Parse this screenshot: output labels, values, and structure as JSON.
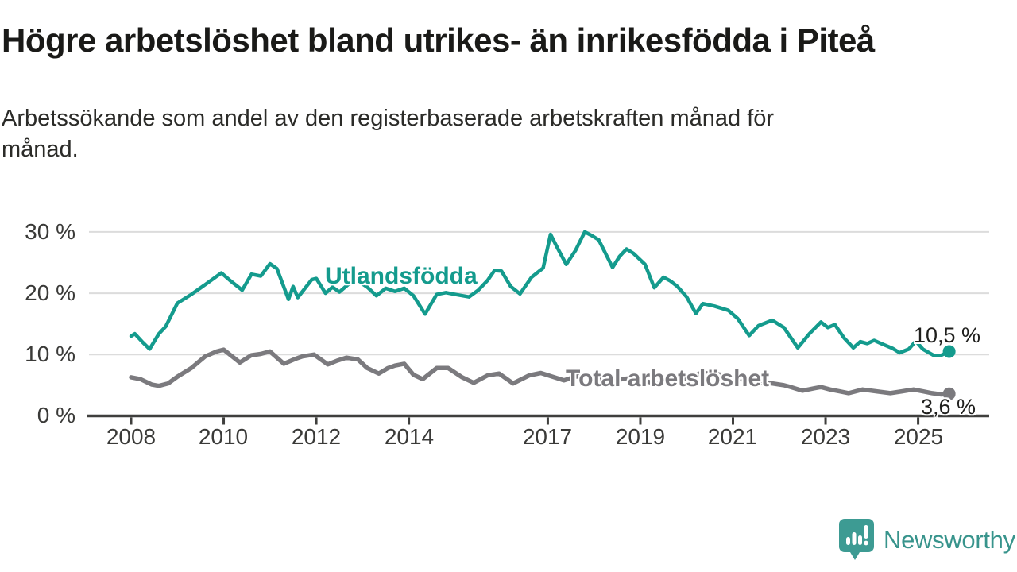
{
  "header": {
    "title": "Högre arbetslöshet bland utrikes- än inrikesfödda i Piteå",
    "subtitle_line1": "Arbetssökande som andel av den registerbaserade arbetskraften månad för",
    "subtitle_line2": "månad."
  },
  "branding": {
    "logo_text": "Newsworthy",
    "logo_color": "#3d9b93"
  },
  "colors": {
    "series_utlandsfodda": "#149b8d",
    "series_total": "#7b7a7e",
    "grid": "#dcdcdc",
    "axis": "#3f3f3d",
    "tick_label": "#3a3a38"
  },
  "chart_data": {
    "type": "line",
    "title": "Högre arbetslöshet bland utrikes- än inrikesfödda i Piteå",
    "subtitle": "Arbetssökande som andel av den registerbaserade arbetskraften månad för månad.",
    "xlabel": "",
    "ylabel": "",
    "x_unit": "year (decimal = month position)",
    "y_unit": "%",
    "xlim": [
      2007.95,
      2025.9
    ],
    "ylim": [
      0,
      32
    ],
    "grid": "horizontal",
    "legend_position": "inline-labels",
    "yticks": [
      {
        "value": 0,
        "label": "0 %"
      },
      {
        "value": 10,
        "label": "10 %"
      },
      {
        "value": 20,
        "label": "20 %"
      },
      {
        "value": 30,
        "label": "30 %"
      }
    ],
    "xticks": [
      {
        "value": 2008,
        "label": "2008"
      },
      {
        "value": 2010,
        "label": "2010"
      },
      {
        "value": 2012,
        "label": "2012"
      },
      {
        "value": 2014,
        "label": "2014"
      },
      {
        "value": 2017,
        "label": "2017"
      },
      {
        "value": 2019,
        "label": "2019"
      },
      {
        "value": 2021,
        "label": "2021"
      },
      {
        "value": 2023,
        "label": "2023"
      },
      {
        "value": 2025,
        "label": "2025"
      }
    ],
    "series": [
      {
        "name": "Utlandsfödda",
        "color": "#149b8d",
        "line_width": 4.5,
        "end_dot": true,
        "end_value_label": "10,5 %",
        "points": [
          [
            2008.0,
            13.0
          ],
          [
            2008.08,
            13.4
          ],
          [
            2008.25,
            12.0
          ],
          [
            2008.4,
            10.9
          ],
          [
            2008.6,
            13.4
          ],
          [
            2008.75,
            14.6
          ],
          [
            2009.0,
            18.4
          ],
          [
            2009.3,
            19.8
          ],
          [
            2009.6,
            21.4
          ],
          [
            2009.95,
            23.3
          ],
          [
            2010.15,
            22.0
          ],
          [
            2010.4,
            20.5
          ],
          [
            2010.6,
            23.1
          ],
          [
            2010.8,
            22.8
          ],
          [
            2011.0,
            24.8
          ],
          [
            2011.15,
            24.0
          ],
          [
            2011.4,
            19.0
          ],
          [
            2011.5,
            21.1
          ],
          [
            2011.6,
            19.3
          ],
          [
            2011.9,
            22.2
          ],
          [
            2012.0,
            22.4
          ],
          [
            2012.2,
            20.0
          ],
          [
            2012.35,
            21.0
          ],
          [
            2012.5,
            20.2
          ],
          [
            2012.7,
            21.5
          ],
          [
            2012.9,
            22.0
          ],
          [
            2013.1,
            21.0
          ],
          [
            2013.3,
            19.6
          ],
          [
            2013.5,
            20.8
          ],
          [
            2013.7,
            20.3
          ],
          [
            2013.9,
            20.8
          ],
          [
            2014.1,
            19.6
          ],
          [
            2014.35,
            16.6
          ],
          [
            2014.6,
            19.8
          ],
          [
            2014.8,
            20.1
          ],
          [
            2015.0,
            19.8
          ],
          [
            2015.3,
            19.4
          ],
          [
            2015.5,
            20.5
          ],
          [
            2015.7,
            22.1
          ],
          [
            2015.85,
            23.7
          ],
          [
            2016.0,
            23.6
          ],
          [
            2016.2,
            21.1
          ],
          [
            2016.4,
            19.9
          ],
          [
            2016.65,
            22.6
          ],
          [
            2016.9,
            24.1
          ],
          [
            2017.06,
            29.6
          ],
          [
            2017.2,
            27.5
          ],
          [
            2017.4,
            24.7
          ],
          [
            2017.6,
            27.0
          ],
          [
            2017.8,
            30.0
          ],
          [
            2017.95,
            29.4
          ],
          [
            2018.1,
            28.7
          ],
          [
            2018.4,
            24.2
          ],
          [
            2018.55,
            26.0
          ],
          [
            2018.7,
            27.2
          ],
          [
            2018.85,
            26.5
          ],
          [
            2019.1,
            24.7
          ],
          [
            2019.3,
            20.9
          ],
          [
            2019.5,
            22.6
          ],
          [
            2019.65,
            22.0
          ],
          [
            2019.8,
            21.1
          ],
          [
            2020.0,
            19.4
          ],
          [
            2020.2,
            16.7
          ],
          [
            2020.35,
            18.3
          ],
          [
            2020.6,
            17.9
          ],
          [
            2020.9,
            17.2
          ],
          [
            2021.1,
            15.9
          ],
          [
            2021.35,
            13.1
          ],
          [
            2021.55,
            14.7
          ],
          [
            2021.85,
            15.6
          ],
          [
            2022.1,
            14.4
          ],
          [
            2022.4,
            11.1
          ],
          [
            2022.65,
            13.4
          ],
          [
            2022.9,
            15.3
          ],
          [
            2023.05,
            14.4
          ],
          [
            2023.2,
            14.9
          ],
          [
            2023.4,
            12.7
          ],
          [
            2023.6,
            11.1
          ],
          [
            2023.75,
            12.1
          ],
          [
            2023.9,
            11.8
          ],
          [
            2024.05,
            12.3
          ],
          [
            2024.2,
            11.8
          ],
          [
            2024.45,
            11.0
          ],
          [
            2024.6,
            10.3
          ],
          [
            2024.8,
            10.9
          ],
          [
            2024.95,
            12.2
          ],
          [
            2025.1,
            10.9
          ],
          [
            2025.35,
            9.8
          ],
          [
            2025.5,
            9.9
          ],
          [
            2025.67,
            10.5
          ]
        ]
      },
      {
        "name": "Total arbetslöshet",
        "color": "#7b7a7e",
        "line_width": 5.5,
        "end_dot": true,
        "end_value_label": "3,6 %",
        "points": [
          [
            2008.0,
            6.3
          ],
          [
            2008.2,
            6.0
          ],
          [
            2008.45,
            5.1
          ],
          [
            2008.6,
            4.9
          ],
          [
            2008.8,
            5.3
          ],
          [
            2009.0,
            6.4
          ],
          [
            2009.3,
            7.8
          ],
          [
            2009.6,
            9.7
          ],
          [
            2009.85,
            10.5
          ],
          [
            2010.0,
            10.8
          ],
          [
            2010.35,
            8.7
          ],
          [
            2010.6,
            9.9
          ],
          [
            2010.8,
            10.1
          ],
          [
            2011.0,
            10.5
          ],
          [
            2011.3,
            8.5
          ],
          [
            2011.55,
            9.3
          ],
          [
            2011.7,
            9.7
          ],
          [
            2011.95,
            10.0
          ],
          [
            2012.25,
            8.4
          ],
          [
            2012.45,
            9.0
          ],
          [
            2012.65,
            9.5
          ],
          [
            2012.9,
            9.2
          ],
          [
            2013.1,
            7.8
          ],
          [
            2013.35,
            6.9
          ],
          [
            2013.55,
            7.8
          ],
          [
            2013.7,
            8.2
          ],
          [
            2013.9,
            8.5
          ],
          [
            2014.1,
            6.7
          ],
          [
            2014.3,
            6.0
          ],
          [
            2014.6,
            7.8
          ],
          [
            2014.85,
            7.8
          ],
          [
            2015.15,
            6.3
          ],
          [
            2015.4,
            5.4
          ],
          [
            2015.7,
            6.6
          ],
          [
            2015.95,
            6.9
          ],
          [
            2016.25,
            5.3
          ],
          [
            2016.6,
            6.6
          ],
          [
            2016.85,
            7.0
          ],
          [
            2017.1,
            6.4
          ],
          [
            2017.35,
            5.8
          ],
          [
            2017.6,
            6.4
          ],
          [
            2017.85,
            6.6
          ],
          [
            2018.1,
            6.1
          ],
          [
            2018.35,
            5.5
          ],
          [
            2018.6,
            6.0
          ],
          [
            2018.85,
            6.2
          ],
          [
            2019.1,
            5.7
          ],
          [
            2019.35,
            5.2
          ],
          [
            2019.6,
            5.7
          ],
          [
            2019.85,
            5.9
          ],
          [
            2020.1,
            6.2
          ],
          [
            2020.3,
            7.0
          ],
          [
            2020.55,
            6.9
          ],
          [
            2020.85,
            6.6
          ],
          [
            2021.1,
            6.2
          ],
          [
            2021.35,
            5.6
          ],
          [
            2021.6,
            5.4
          ],
          [
            2021.85,
            5.3
          ],
          [
            2022.1,
            5.0
          ],
          [
            2022.25,
            4.7
          ],
          [
            2022.5,
            4.1
          ],
          [
            2022.75,
            4.5
          ],
          [
            2022.9,
            4.7
          ],
          [
            2023.1,
            4.3
          ],
          [
            2023.3,
            4.0
          ],
          [
            2023.5,
            3.7
          ],
          [
            2023.8,
            4.3
          ],
          [
            2024.1,
            4.0
          ],
          [
            2024.4,
            3.7
          ],
          [
            2024.65,
            4.0
          ],
          [
            2024.9,
            4.3
          ],
          [
            2025.1,
            4.0
          ],
          [
            2025.3,
            3.7
          ],
          [
            2025.5,
            3.5
          ],
          [
            2025.67,
            3.6
          ]
        ]
      }
    ],
    "annotations": [
      {
        "series": "Utlandsfödda",
        "text": "Utlandsfödda"
      },
      {
        "series": "Total arbetslöshet",
        "text": "Total arbetslöshet"
      },
      {
        "series": "Utlandsfödda",
        "text": "10,5 %",
        "position": "line-end"
      },
      {
        "series": "Total arbetslöshet",
        "text": "3,6 %",
        "position": "line-end"
      }
    ]
  }
}
